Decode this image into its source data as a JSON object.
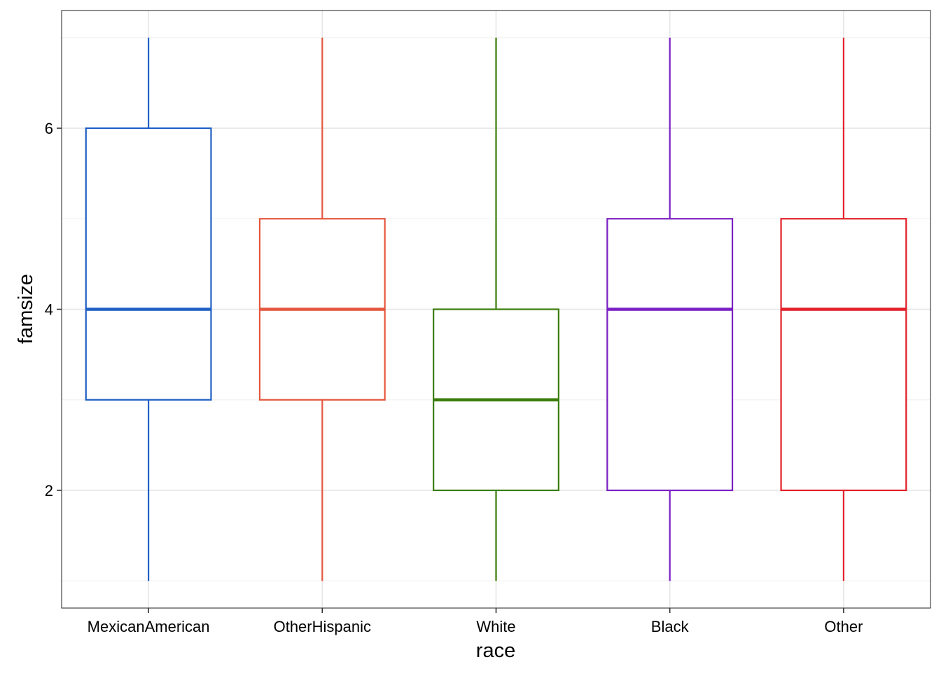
{
  "chart_data": {
    "type": "boxplot",
    "xlabel": "race",
    "ylabel": "famsize",
    "categories": [
      "MexicanAmerican",
      "OtherHispanic",
      "White",
      "Black",
      "Other"
    ],
    "boxes": [
      {
        "category": "MexicanAmerican",
        "min": 1,
        "q1": 3,
        "median": 4,
        "q3": 6,
        "max": 7,
        "color": "#1f5fc4"
      },
      {
        "category": "OtherHispanic",
        "min": 1,
        "q1": 3,
        "median": 4,
        "q3": 5,
        "max": 7,
        "color": "#e4573d"
      },
      {
        "category": "White",
        "min": 1,
        "q1": 2,
        "median": 3,
        "q3": 4,
        "max": 7,
        "color": "#3a7d0a"
      },
      {
        "category": "Black",
        "min": 1,
        "q1": 2,
        "median": 4,
        "q3": 5,
        "max": 7,
        "color": "#7b1fc4"
      },
      {
        "category": "Other",
        "min": 1,
        "q1": 2,
        "median": 4,
        "q3": 5,
        "max": 7,
        "color": "#e2202a"
      }
    ],
    "y_ticks": [
      2,
      4,
      6
    ],
    "ylim": [
      0.7,
      7.3
    ],
    "grid": true,
    "legend": "none"
  }
}
